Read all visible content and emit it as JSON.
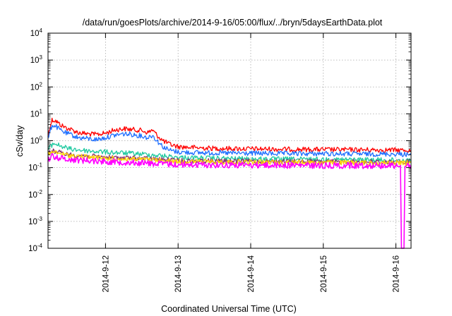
{
  "chart_data": {
    "type": "line",
    "title": "/data/run/goesPlots/archive/2014-9-16/05:00/flux/../bryn/5daysEarthData.plot",
    "xlabel": "Coordinated Universal Time (UTC)",
    "ylabel": "cSv/day",
    "x_range": [
      "2014-09-11T05:00",
      "2014-09-16T05:00"
    ],
    "ylim": [
      0.0001,
      10000
    ],
    "y_scale": "log",
    "grid": true,
    "x_ticks": [
      {
        "value": "2014-09-12T00:00",
        "label": "2014-9-12"
      },
      {
        "value": "2014-09-13T00:00",
        "label": "2014-9-13"
      },
      {
        "value": "2014-09-14T00:00",
        "label": "2014-9-14"
      },
      {
        "value": "2014-09-15T00:00",
        "label": "2014-9-15"
      },
      {
        "value": "2014-09-16T00:00",
        "label": "2014-9-16"
      }
    ],
    "y_ticks": [
      {
        "value": 0.0001,
        "base": "10",
        "exp": "-4"
      },
      {
        "value": 0.001,
        "base": "10",
        "exp": "-3"
      },
      {
        "value": 0.01,
        "base": "10",
        "exp": "-2"
      },
      {
        "value": 0.1,
        "base": "10",
        "exp": "-1"
      },
      {
        "value": 1,
        "base": "10",
        "exp": "0"
      },
      {
        "value": 10,
        "base": "10",
        "exp": "1"
      },
      {
        "value": 100,
        "base": "10",
        "exp": "2"
      },
      {
        "value": 1000,
        "base": "10",
        "exp": "3"
      },
      {
        "value": 10000,
        "base": "10",
        "exp": "4"
      }
    ],
    "series": [
      {
        "color": "#ff0000",
        "points": [
          [
            "2014-09-11T05:00",
            1.5
          ],
          [
            "2014-09-11T05:40",
            3.5
          ],
          [
            "2014-09-11T06:20",
            6.0
          ],
          [
            "2014-09-11T07:30",
            5.5
          ],
          [
            "2014-09-11T09:00",
            4.0
          ],
          [
            "2014-09-11T11:00",
            3.0
          ],
          [
            "2014-09-11T13:00",
            2.5
          ],
          [
            "2014-09-11T15:00",
            2.0
          ],
          [
            "2014-09-11T18:00",
            1.8
          ],
          [
            "2014-09-11T21:00",
            1.7
          ],
          [
            "2014-09-12T00:00",
            1.9
          ],
          [
            "2014-09-12T03:00",
            2.5
          ],
          [
            "2014-09-12T06:00",
            2.8
          ],
          [
            "2014-09-12T09:00",
            2.6
          ],
          [
            "2014-09-12T12:00",
            2.4
          ],
          [
            "2014-09-12T14:00",
            2.0
          ],
          [
            "2014-09-12T15:30",
            2.5
          ],
          [
            "2014-09-12T17:00",
            1.6
          ],
          [
            "2014-09-12T19:00",
            1.0
          ],
          [
            "2014-09-12T21:00",
            0.75
          ],
          [
            "2014-09-13T00:00",
            0.6
          ],
          [
            "2014-09-13T06:00",
            0.55
          ],
          [
            "2014-09-13T12:00",
            0.52
          ],
          [
            "2014-09-14T00:00",
            0.5
          ],
          [
            "2014-09-14T12:00",
            0.48
          ],
          [
            "2014-09-15T00:00",
            0.47
          ],
          [
            "2014-09-15T12:00",
            0.46
          ],
          [
            "2014-09-16T00:00",
            0.45
          ],
          [
            "2014-09-16T05:00",
            0.44
          ]
        ]
      },
      {
        "color": "#1f6fff",
        "points": [
          [
            "2014-09-11T05:00",
            1.1
          ],
          [
            "2014-09-11T05:40",
            2.2
          ],
          [
            "2014-09-11T06:20",
            3.8
          ],
          [
            "2014-09-11T07:30",
            3.5
          ],
          [
            "2014-09-11T09:00",
            2.5
          ],
          [
            "2014-09-11T11:00",
            1.9
          ],
          [
            "2014-09-11T13:00",
            1.6
          ],
          [
            "2014-09-11T15:00",
            1.3
          ],
          [
            "2014-09-11T18:00",
            1.2
          ],
          [
            "2014-09-11T21:00",
            1.1
          ],
          [
            "2014-09-12T00:00",
            1.3
          ],
          [
            "2014-09-12T03:00",
            1.6
          ],
          [
            "2014-09-12T06:00",
            1.8
          ],
          [
            "2014-09-12T09:00",
            1.7
          ],
          [
            "2014-09-12T12:00",
            1.5
          ],
          [
            "2014-09-12T14:00",
            1.3
          ],
          [
            "2014-09-12T15:30",
            1.6
          ],
          [
            "2014-09-12T17:00",
            1.0
          ],
          [
            "2014-09-12T19:00",
            0.6
          ],
          [
            "2014-09-12T21:00",
            0.45
          ],
          [
            "2014-09-13T00:00",
            0.38
          ],
          [
            "2014-09-13T06:00",
            0.36
          ],
          [
            "2014-09-13T12:00",
            0.35
          ],
          [
            "2014-09-14T00:00",
            0.34
          ],
          [
            "2014-09-14T12:00",
            0.33
          ],
          [
            "2014-09-15T00:00",
            0.33
          ],
          [
            "2014-09-15T12:00",
            0.32
          ],
          [
            "2014-09-16T00:00",
            0.32
          ],
          [
            "2014-09-16T05:00",
            0.31
          ]
        ]
      },
      {
        "color": "#1ec9a0",
        "points": [
          [
            "2014-09-11T05:00",
            0.45
          ],
          [
            "2014-09-11T06:00",
            0.65
          ],
          [
            "2014-09-11T07:00",
            0.8
          ],
          [
            "2014-09-11T09:00",
            0.65
          ],
          [
            "2014-09-11T12:00",
            0.5
          ],
          [
            "2014-09-11T18:00",
            0.42
          ],
          [
            "2014-09-12T00:00",
            0.38
          ],
          [
            "2014-09-12T06:00",
            0.35
          ],
          [
            "2014-09-12T12:00",
            0.32
          ],
          [
            "2014-09-12T18:00",
            0.28
          ],
          [
            "2014-09-13T00:00",
            0.24
          ],
          [
            "2014-09-13T12:00",
            0.22
          ],
          [
            "2014-09-14T00:00",
            0.21
          ],
          [
            "2014-09-15T00:00",
            0.2
          ],
          [
            "2014-09-16T00:00",
            0.19
          ],
          [
            "2014-09-16T05:00",
            0.19
          ]
        ]
      },
      {
        "color": "#8a2b6e",
        "points": [
          [
            "2014-09-11T05:00",
            0.33
          ],
          [
            "2014-09-11T06:30",
            0.42
          ],
          [
            "2014-09-11T08:00",
            0.38
          ],
          [
            "2014-09-11T12:00",
            0.3
          ],
          [
            "2014-09-12T00:00",
            0.24
          ],
          [
            "2014-09-12T12:00",
            0.22
          ],
          [
            "2014-09-13T00:00",
            0.18
          ],
          [
            "2014-09-14T00:00",
            0.17
          ],
          [
            "2014-09-15T00:00",
            0.165
          ],
          [
            "2014-09-16T00:00",
            0.16
          ],
          [
            "2014-09-16T05:00",
            0.16
          ]
        ]
      },
      {
        "color": "#ffd400",
        "points": [
          [
            "2014-09-11T05:00",
            0.3
          ],
          [
            "2014-09-11T06:30",
            0.38
          ],
          [
            "2014-09-11T08:00",
            0.35
          ],
          [
            "2014-09-11T12:00",
            0.28
          ],
          [
            "2014-09-12T00:00",
            0.22
          ],
          [
            "2014-09-12T12:00",
            0.2
          ],
          [
            "2014-09-13T00:00",
            0.17
          ],
          [
            "2014-09-14T00:00",
            0.16
          ],
          [
            "2014-09-15T00:00",
            0.155
          ],
          [
            "2014-09-16T00:00",
            0.15
          ],
          [
            "2014-09-16T05:00",
            0.15
          ]
        ]
      },
      {
        "color": "#ff00ff",
        "points": [
          [
            "2014-09-11T05:00",
            0.2
          ],
          [
            "2014-09-11T06:30",
            0.27
          ],
          [
            "2014-09-11T08:00",
            0.24
          ],
          [
            "2014-09-11T12:00",
            0.2
          ],
          [
            "2014-09-12T00:00",
            0.17
          ],
          [
            "2014-09-12T12:00",
            0.15
          ],
          [
            "2014-09-13T00:00",
            0.13
          ],
          [
            "2014-09-14T00:00",
            0.125
          ],
          [
            "2014-09-15T00:00",
            0.12
          ],
          [
            "2014-09-16T01:30",
            0.12
          ],
          [
            "2014-09-16T01:50",
            0.0001
          ],
          [
            "2014-09-16T02:40",
            0.0001
          ],
          [
            "2014-09-16T03:00",
            0.12
          ],
          [
            "2014-09-16T05:00",
            0.12
          ]
        ]
      }
    ]
  }
}
